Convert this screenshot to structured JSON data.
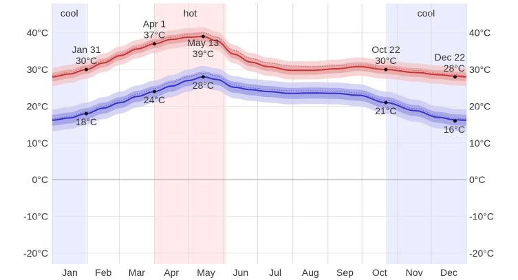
{
  "chart_data": {
    "type": "line",
    "title": "",
    "xlabel": "",
    "ylabel": "",
    "ylim": [
      -23,
      48
    ],
    "y_ticks": [
      40,
      30,
      20,
      10,
      0,
      -10,
      -20
    ],
    "y_tick_labels": [
      "40°C",
      "30°C",
      "20°C",
      "10°C",
      "0°C",
      "-10°C",
      "-20°C"
    ],
    "months": [
      "Jan",
      "Feb",
      "Mar",
      "Apr",
      "May",
      "Jun",
      "Jul",
      "Aug",
      "Sep",
      "Oct",
      "Nov",
      "Dec"
    ],
    "grid": true,
    "seasons": [
      {
        "label": "cool",
        "start_day": 0,
        "end_day": 30,
        "color": "#ececff"
      },
      {
        "label": "hot",
        "start_day": 90,
        "end_day": 153,
        "color": "#ffe9ea"
      },
      {
        "label": "cool",
        "start_day": 294,
        "end_day": 365,
        "color": "#ececff"
      }
    ],
    "series": [
      {
        "role": "high",
        "color": "#cc3333",
        "band_outer": "#f2c7c7",
        "band_inner": "#e6a3a3",
        "days": [
          0,
          15,
          30,
          45,
          60,
          75,
          90,
          105,
          120,
          133,
          145,
          160,
          175,
          190,
          210,
          230,
          250,
          270,
          294,
          320,
          340,
          355,
          365
        ],
        "values": [
          28.0,
          28.8,
          30.0,
          31.8,
          33.8,
          35.6,
          37.0,
          38.2,
          38.8,
          39.0,
          37.8,
          34.2,
          32.0,
          30.8,
          29.8,
          29.8,
          30.2,
          30.8,
          30.0,
          29.2,
          28.6,
          28.2,
          28.0
        ],
        "normal": [
          28.3,
          29.3,
          30.6,
          32.3,
          34.2,
          36.0,
          37.6,
          38.8,
          39.6,
          40.0,
          38.8,
          35.2,
          33.0,
          31.8,
          31.0,
          30.8,
          31.0,
          31.3,
          30.6,
          29.8,
          29.0,
          28.6,
          28.3
        ],
        "spread_inner": 1.2,
        "spread_outer": 2.5
      },
      {
        "role": "low",
        "color": "#3333cc",
        "band_outer": "#c7c7f0",
        "band_inner": "#9e9ee6",
        "days": [
          0,
          15,
          30,
          45,
          60,
          75,
          90,
          105,
          120,
          133,
          145,
          160,
          175,
          190,
          210,
          230,
          250,
          270,
          294,
          320,
          340,
          355,
          365
        ],
        "values": [
          16.2,
          16.8,
          18.0,
          19.5,
          21.0,
          22.7,
          24.0,
          25.5,
          27.0,
          28.0,
          27.3,
          25.2,
          24.5,
          24.0,
          23.5,
          23.6,
          23.5,
          23.0,
          21.0,
          18.8,
          17.0,
          16.3,
          16.2
        ],
        "normal": [
          16.5,
          17.2,
          18.5,
          20.0,
          21.6,
          23.3,
          24.8,
          26.5,
          28.0,
          29.0,
          28.2,
          25.8,
          25.0,
          24.6,
          24.2,
          24.2,
          24.1,
          23.6,
          21.6,
          19.4,
          17.5,
          16.7,
          16.5
        ],
        "spread_inner": 1.5,
        "spread_outer": 3.0
      }
    ],
    "annotations": [
      {
        "series": "high",
        "day": 30,
        "value": 30,
        "date": "Jan 31",
        "temp": "30°C",
        "pos": "above"
      },
      {
        "series": "high",
        "day": 90,
        "value": 37,
        "date": "Apr 1",
        "temp": "37°C",
        "pos": "above"
      },
      {
        "series": "high",
        "day": 133,
        "value": 39,
        "date": "May 13",
        "temp": "39°C",
        "pos": "below"
      },
      {
        "series": "high",
        "day": 294,
        "value": 30,
        "date": "Oct 22",
        "temp": "30°C",
        "pos": "above"
      },
      {
        "series": "high",
        "day": 355,
        "value": 28,
        "date": "Dec 22",
        "temp": "28°C",
        "pos": "above"
      },
      {
        "series": "low",
        "day": 30,
        "value": 18,
        "date": "",
        "temp": "18°C",
        "pos": "below"
      },
      {
        "series": "low",
        "day": 90,
        "value": 24,
        "date": "",
        "temp": "24°C",
        "pos": "below"
      },
      {
        "series": "low",
        "day": 133,
        "value": 28,
        "date": "",
        "temp": "28°C",
        "pos": "below"
      },
      {
        "series": "low",
        "day": 294,
        "value": 21,
        "date": "",
        "temp": "21°C",
        "pos": "below"
      },
      {
        "series": "low",
        "day": 355,
        "value": 16,
        "date": "",
        "temp": "16°C",
        "pos": "below"
      }
    ]
  }
}
